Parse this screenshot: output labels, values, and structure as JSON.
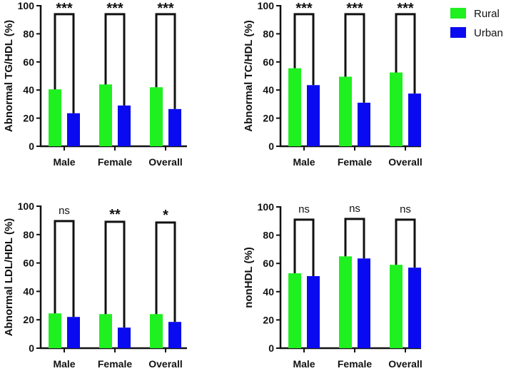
{
  "chart_data": [
    {
      "type": "bar",
      "ylabel": "Abnormal TG/HDL (%)",
      "categories": [
        "Male",
        "Female",
        "Overall"
      ],
      "ylim": [
        0,
        100
      ],
      "yticks": [
        0,
        20,
        40,
        60,
        80,
        100
      ],
      "series": [
        {
          "name": "Rural",
          "values": [
            40.5,
            44,
            42
          ]
        },
        {
          "name": "Urban",
          "values": [
            23.5,
            29,
            26.5
          ]
        }
      ],
      "significance": [
        "***",
        "***",
        "***"
      ],
      "bracket_level": [
        94,
        94,
        94
      ]
    },
    {
      "type": "bar",
      "ylabel": "Abnormal TC/HDL (%)",
      "categories": [
        "Male",
        "Female",
        "Overall"
      ],
      "ylim": [
        0,
        100
      ],
      "yticks": [
        0,
        20,
        40,
        60,
        80,
        100
      ],
      "series": [
        {
          "name": "Rural",
          "values": [
            55.5,
            49.5,
            52.5
          ]
        },
        {
          "name": "Urban",
          "values": [
            43.5,
            31,
            37.5
          ]
        }
      ],
      "significance": [
        "***",
        "***",
        "***"
      ],
      "bracket_level": [
        94,
        94,
        94
      ]
    },
    {
      "type": "bar",
      "ylabel": "Abnormal LDL/HDL (%)",
      "categories": [
        "Male",
        "Female",
        "Overall"
      ],
      "ylim": [
        0,
        100
      ],
      "yticks": [
        0,
        20,
        40,
        60,
        80,
        100
      ],
      "series": [
        {
          "name": "Rural",
          "values": [
            24.5,
            24,
            24
          ]
        },
        {
          "name": "Urban",
          "values": [
            22,
            14.5,
            18.5
          ]
        }
      ],
      "significance": [
        "ns",
        "**",
        "*"
      ],
      "bracket_level": [
        89.5,
        89,
        88.5
      ]
    },
    {
      "type": "bar",
      "ylabel": "nonHDL (%)",
      "categories": [
        "Male",
        "Female",
        "Overall"
      ],
      "ylim": [
        0,
        100
      ],
      "yticks": [
        0,
        20,
        40,
        60,
        80,
        100
      ],
      "series": [
        {
          "name": "Rural",
          "values": [
            53,
            65,
            59
          ]
        },
        {
          "name": "Urban",
          "values": [
            51,
            63.5,
            57
          ]
        }
      ],
      "significance": [
        "ns",
        "ns",
        "ns"
      ],
      "bracket_level": [
        91,
        91.5,
        91
      ]
    }
  ],
  "legend": {
    "position": "top-right",
    "items": [
      {
        "label": "Rural",
        "color": "#1ff01f"
      },
      {
        "label": "Urban",
        "color": "#0a0af0"
      }
    ]
  }
}
